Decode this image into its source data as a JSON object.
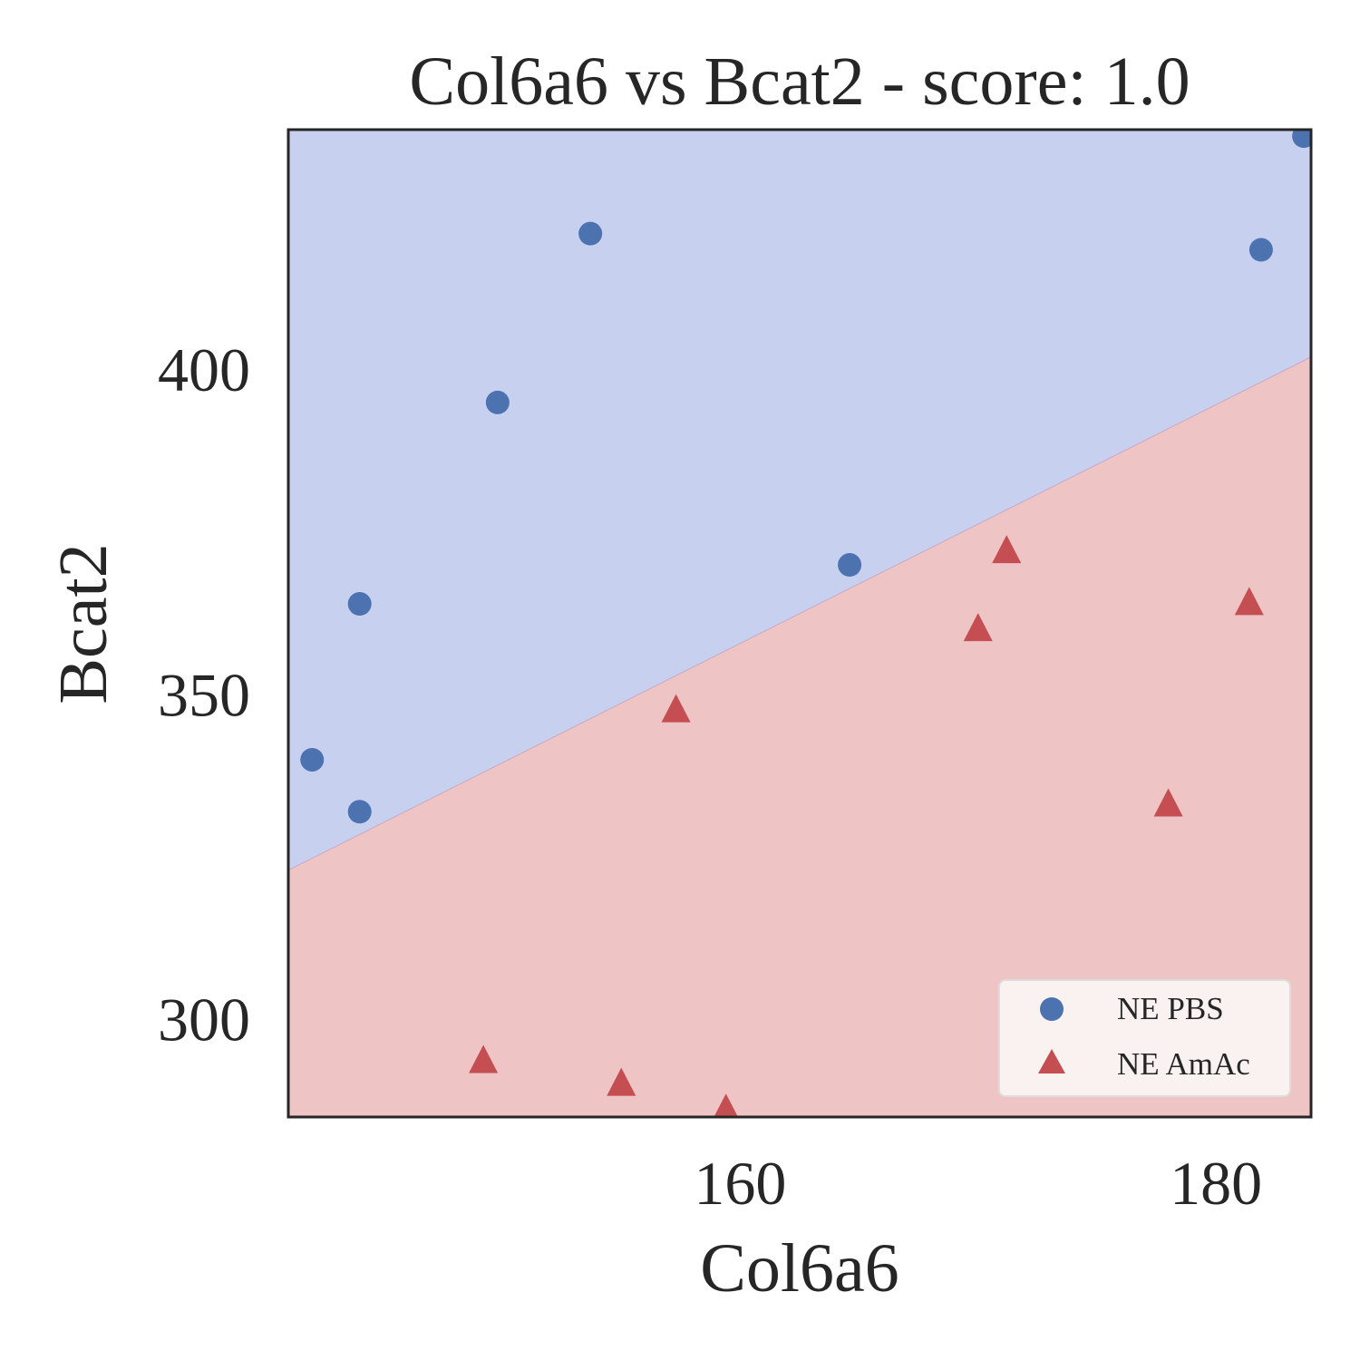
{
  "chart_data": {
    "type": "scatter",
    "title": "Col6a6 vs Bcat2 - score: 1.0",
    "xlabel": "Col6a6",
    "ylabel": "Bcat2",
    "xlim": [
      141.0,
      184.0
    ],
    "ylim": [
      285.0,
      437.0
    ],
    "xticks": [
      160,
      180
    ],
    "yticks": [
      300,
      350,
      400
    ],
    "grid": false,
    "legend_position": "bottom-right",
    "decision_boundary": {
      "x": [
        141.0,
        184.0
      ],
      "y": [
        323.0,
        402.0
      ],
      "above_color": "#c8d0f0",
      "below_color": "#eec4c4"
    },
    "series": [
      {
        "name": "NE PBS",
        "marker": "circle",
        "color": "#4c72b0",
        "points": [
          {
            "x": 142.0,
            "y": 340.0
          },
          {
            "x": 144.0,
            "y": 332.0
          },
          {
            "x": 144.0,
            "y": 364.0
          },
          {
            "x": 149.8,
            "y": 395.0
          },
          {
            "x": 153.7,
            "y": 421.0
          },
          {
            "x": 164.6,
            "y": 370.0
          },
          {
            "x": 181.9,
            "y": 418.5
          },
          {
            "x": 183.7,
            "y": 436.0
          }
        ]
      },
      {
        "name": "NE AmAc",
        "marker": "triangle",
        "color": "#c44e52",
        "points": [
          {
            "x": 149.2,
            "y": 293.5
          },
          {
            "x": 155.0,
            "y": 290.0
          },
          {
            "x": 157.3,
            "y": 347.5
          },
          {
            "x": 159.4,
            "y": 286.0
          },
          {
            "x": 170.0,
            "y": 360.0
          },
          {
            "x": 171.2,
            "y": 372.0
          },
          {
            "x": 178.0,
            "y": 333.0
          },
          {
            "x": 181.4,
            "y": 364.0
          }
        ]
      }
    ]
  }
}
